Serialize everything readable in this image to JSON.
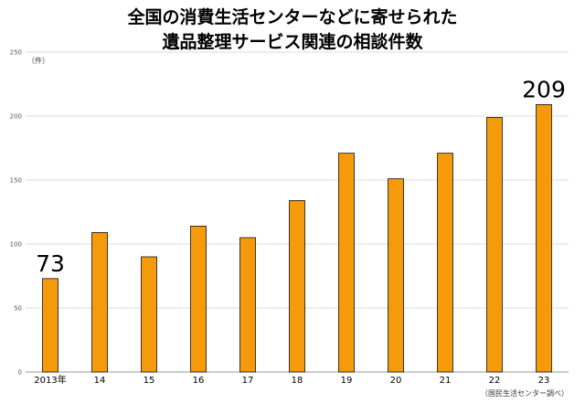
{
  "chart_data": {
    "type": "bar",
    "title_lines": [
      "全国の消費生活センターなどに寄せられた",
      "遺品整理サービス関連の相談件数"
    ],
    "ylabel": "（件）",
    "categories": [
      "2013年",
      "14",
      "15",
      "16",
      "17",
      "18",
      "19",
      "20",
      "21",
      "22",
      "23"
    ],
    "values": [
      73,
      109,
      90,
      114,
      105,
      134,
      171,
      151,
      171,
      199,
      209
    ],
    "labeled_values": {
      "0": "73",
      "10": "209"
    },
    "yticks": [
      "0",
      "50",
      "100",
      "150",
      "200",
      "250"
    ],
    "ylim": [
      0,
      250
    ],
    "grid": true,
    "bar_color": "#f59a0b",
    "bar_edge_color": "#111111",
    "source": "（国民生活センター調べ）"
  }
}
